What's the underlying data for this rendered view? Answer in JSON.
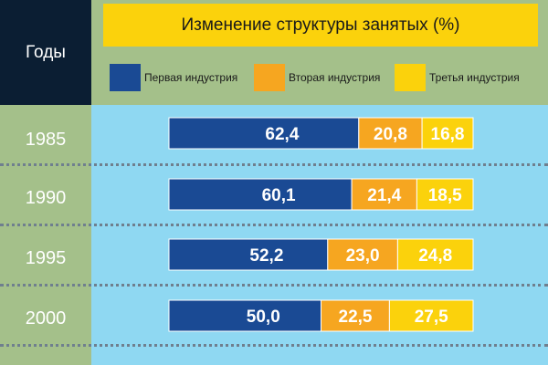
{
  "header": {
    "years_heading": "Годы",
    "title": "Изменение структуры занятых (%)"
  },
  "colors": {
    "primary": "#1a4a94",
    "secondary": "#f6a620",
    "tertiary": "#fbd20c",
    "year_column": "#a4c08a",
    "plot_background": "#8fd8f2"
  },
  "legend": [
    {
      "label": "Первая индустрия",
      "color": "#1a4a94"
    },
    {
      "label": "Вторая индустрия",
      "color": "#f6a620"
    },
    {
      "label": "Третья индустрия",
      "color": "#fbd20c"
    }
  ],
  "chart_data": {
    "type": "bar",
    "orientation": "horizontal",
    "stacked": true,
    "title": "Изменение структуры занятых (%)",
    "categories": [
      "1985",
      "1990",
      "1995",
      "2000"
    ],
    "series": [
      {
        "name": "Первая индустрия",
        "values": [
          62.4,
          60.1,
          52.2,
          50.0
        ],
        "labels": [
          "62,4",
          "60,1",
          "52,2",
          "50,0"
        ]
      },
      {
        "name": "Вторая индустрия",
        "values": [
          20.8,
          21.4,
          23.0,
          22.5
        ],
        "labels": [
          "20,8",
          "21,4",
          "23,0",
          "22,5"
        ]
      },
      {
        "name": "Третья индустрия",
        "values": [
          16.8,
          18.5,
          24.8,
          27.5
        ],
        "labels": [
          "16,8",
          "18,5",
          "24,8",
          "27,5"
        ]
      }
    ],
    "xlim": [
      0,
      100
    ],
    "legend_position": "top",
    "grid": false
  }
}
